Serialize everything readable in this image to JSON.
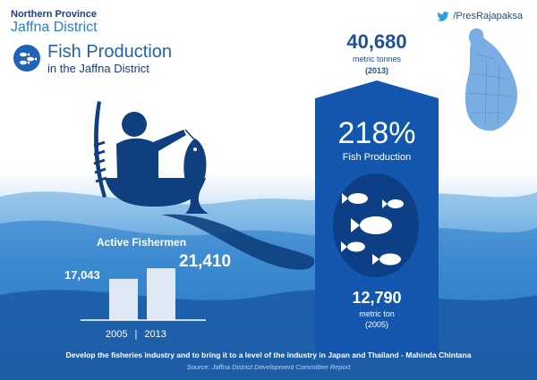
{
  "header": {
    "province": "Northern Province",
    "district": "Jaffna District",
    "twitter_handle": "/PresRajapaksa",
    "title": "Fish Production",
    "subtitle": "in the Jaffna District"
  },
  "production": {
    "current_value": "40,680",
    "current_unit": "metric tonnes",
    "current_year": "(2013)",
    "growth_percent": "218%",
    "growth_label": "Fish Production",
    "previous_value": "12,790",
    "previous_unit": "metric ton",
    "previous_year": "(2005)"
  },
  "fishermen": {
    "title": "Active Fishermen",
    "value_2005": "17,043",
    "value_2013": "21,410",
    "year_2005": "2005",
    "separator": "|",
    "year_2013": "2013"
  },
  "chart_data": {
    "type": "bar",
    "title": "Active Fishermen",
    "categories": [
      "2005",
      "2013"
    ],
    "values": [
      17043,
      21410
    ]
  },
  "footer": {
    "tagline": "Develop the fisheries industry and to bring it to a level of the industry in Japan and Thailand - Mahinda Chintana",
    "source": "Source: Jaffna District Development Committee Report"
  },
  "icons": {
    "twitter": "twitter-bird-icon",
    "logo": "fish-school-icon",
    "map": "sri-lanka-map-icon",
    "person": "fisherman-icon"
  },
  "colors": {
    "primary_blue": "#1e63b8",
    "dark_blue": "#0f4a9a",
    "panel_blue": "#1257ad",
    "light_blue": "#7aaee3"
  }
}
